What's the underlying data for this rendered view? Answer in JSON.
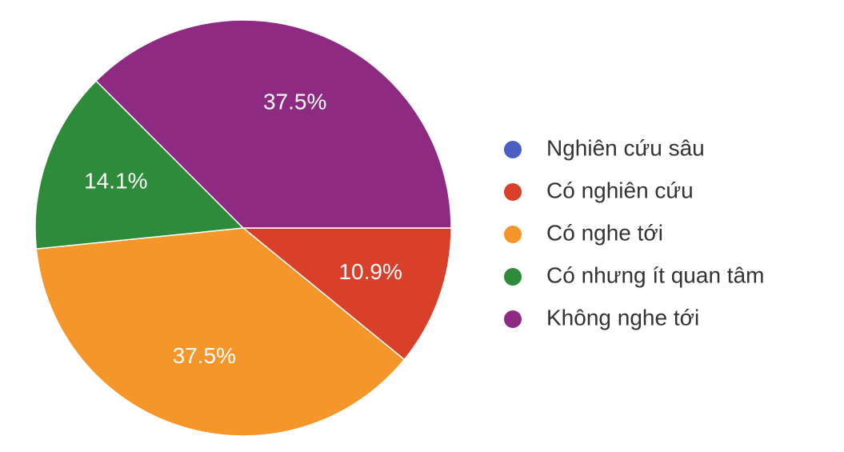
{
  "chart_data": {
    "type": "pie",
    "categories": [
      "Nghiên cứu sâu",
      "Có nghiên cứu",
      "Có nghe tới",
      "Có nhưng ít quan tâm",
      "Không nghe tới"
    ],
    "values": [
      0,
      10.9,
      37.5,
      14.1,
      37.5
    ],
    "value_labels": [
      null,
      "10.9%",
      "37.5%",
      "14.1%",
      "37.5%"
    ],
    "colors": [
      "#4a5fc1",
      "#d9402a",
      "#f5962a",
      "#2e8b3a",
      "#8e2a82"
    ],
    "legend": "right"
  }
}
